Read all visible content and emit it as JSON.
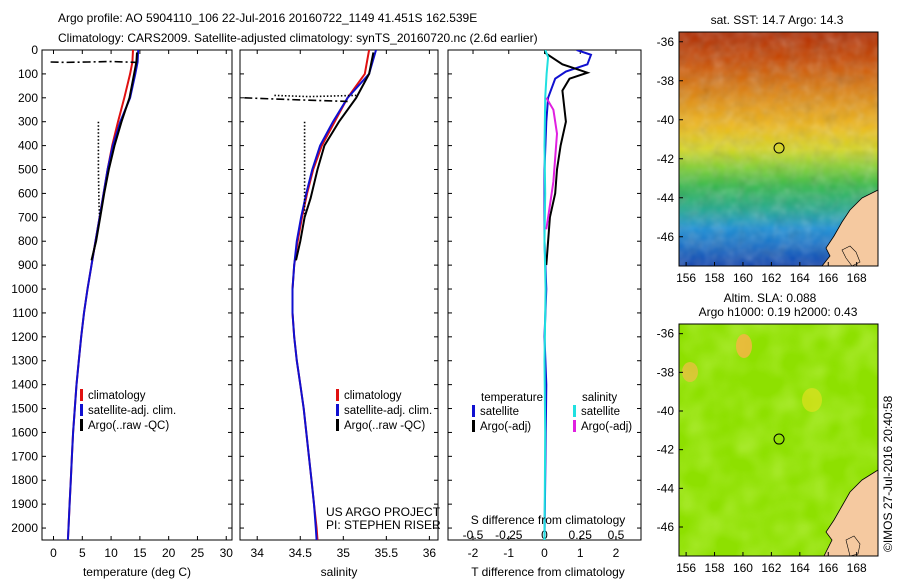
{
  "header": {
    "line1": "Argo profile: AO 5904110_106 22-Jul-2016 20160722_1149 41.451S 162.539E",
    "line2": "Climatology: CARS2009. Satellite-adjusted climatology: synTS_20160720.nc (2.6d earlier)"
  },
  "colors": {
    "climatology": "#e01010",
    "satellite": "#1010d0",
    "argo": "#000000",
    "sal_satellite": "#20e0e0",
    "sal_argo": "#e020e0"
  },
  "chart_data": [
    {
      "type": "line",
      "id": "temperature",
      "xlabel": "temperature (deg C)",
      "ylabel": "",
      "xlim": [
        -2,
        31
      ],
      "ylim": [
        2050,
        0
      ],
      "xticks": [
        0,
        5,
        10,
        15,
        20,
        25,
        30
      ],
      "yticks": [
        0,
        100,
        200,
        300,
        400,
        500,
        600,
        700,
        800,
        900,
        1000,
        1100,
        1200,
        1300,
        1400,
        1500,
        1600,
        1700,
        1800,
        1900,
        2000
      ],
      "legend": {
        "placement": "lower-right",
        "entries": [
          "climatology",
          "satellite-adj. clim.",
          "Argo(..raw -QC)"
        ]
      },
      "series": [
        {
          "name": "climatology",
          "color": "#e01010",
          "points": [
            [
              13.8,
              0
            ],
            [
              13.7,
              50
            ],
            [
              13.3,
              100
            ],
            [
              12.3,
              200
            ],
            [
              11.2,
              300
            ],
            [
              10.2,
              400
            ],
            [
              9.4,
              500
            ],
            [
              8.7,
              600
            ],
            [
              8.0,
              700
            ],
            [
              7.3,
              800
            ],
            [
              6.6,
              900
            ],
            [
              5.9,
              1000
            ],
            [
              5.3,
              1100
            ],
            [
              4.8,
              1200
            ],
            [
              4.4,
              1300
            ],
            [
              4.0,
              1400
            ],
            [
              3.7,
              1500
            ],
            [
              3.4,
              1600
            ],
            [
              3.2,
              1700
            ],
            [
              3.0,
              1800
            ],
            [
              2.8,
              1900
            ],
            [
              2.6,
              2000
            ],
            [
              2.5,
              2050
            ]
          ]
        },
        {
          "name": "satellite-adj. clim.",
          "color": "#1010d0",
          "points": [
            [
              14.7,
              0
            ],
            [
              14.6,
              50
            ],
            [
              14.2,
              100
            ],
            [
              13.3,
              200
            ],
            [
              11.6,
              300
            ],
            [
              10.3,
              400
            ],
            [
              9.4,
              500
            ],
            [
              8.7,
              600
            ],
            [
              8.0,
              700
            ],
            [
              7.3,
              800
            ],
            [
              6.6,
              900
            ],
            [
              5.9,
              1000
            ],
            [
              5.3,
              1100
            ],
            [
              4.8,
              1200
            ],
            [
              4.4,
              1300
            ],
            [
              4.0,
              1400
            ],
            [
              3.7,
              1500
            ],
            [
              3.4,
              1600
            ],
            [
              3.2,
              1700
            ],
            [
              3.0,
              1800
            ],
            [
              2.8,
              1900
            ],
            [
              2.6,
              2000
            ],
            [
              2.5,
              2050
            ]
          ]
        },
        {
          "name": "Argo(..raw -QC)",
          "color": "#000000",
          "points": [
            [
              14.5,
              10
            ],
            [
              14.4,
              50
            ],
            [
              14.0,
              100
            ],
            [
              13.2,
              200
            ],
            [
              11.8,
              300
            ],
            [
              10.6,
              400
            ],
            [
              9.6,
              500
            ],
            [
              8.8,
              600
            ],
            [
              8.1,
              700
            ],
            [
              7.4,
              800
            ],
            [
              6.6,
              880
            ]
          ]
        },
        {
          "name": "Argo raw spike",
          "color": "#000000",
          "dash": "8 3 2 3",
          "points": [
            [
              -0.5,
              50
            ],
            [
              2,
              52
            ],
            [
              6,
              50
            ],
            [
              10,
              48
            ],
            [
              14.5,
              52
            ]
          ]
        },
        {
          "name": "Argo raw dotted",
          "color": "#000000",
          "dash": "1.5 2",
          "points": [
            [
              7.8,
              300
            ],
            [
              7.8,
              500
            ],
            [
              7.9,
              650
            ],
            [
              8.0,
              700
            ]
          ]
        }
      ]
    },
    {
      "type": "line",
      "id": "salinity",
      "xlabel": "salinity",
      "ylabel": "",
      "xlim": [
        33.8,
        36.1
      ],
      "ylim": [
        2050,
        0
      ],
      "xticks": [
        34,
        34.5,
        35,
        35.5,
        36
      ],
      "xticklabels": [
        "34",
        "34.5",
        "35",
        "35.5",
        "36"
      ],
      "legend": {
        "placement": "lower-right",
        "entries": [
          "climatology",
          "satellite-adj. clim.",
          "Argo(..raw -QC)"
        ]
      },
      "annotations": [
        "US ARGO PROJECT",
        "PI: STEPHEN RISER"
      ],
      "series": [
        {
          "name": "climatology",
          "color": "#e01010",
          "points": [
            [
              35.3,
              0
            ],
            [
              35.25,
              100
            ],
            [
              35.05,
              200
            ],
            [
              34.9,
              300
            ],
            [
              34.75,
              400
            ],
            [
              34.65,
              500
            ],
            [
              34.58,
              600
            ],
            [
              34.52,
              700
            ],
            [
              34.47,
              800
            ],
            [
              34.43,
              900
            ],
            [
              34.41,
              1000
            ],
            [
              34.41,
              1100
            ],
            [
              34.43,
              1200
            ],
            [
              34.46,
              1300
            ],
            [
              34.5,
              1400
            ],
            [
              34.54,
              1500
            ],
            [
              34.57,
              1600
            ],
            [
              34.6,
              1700
            ],
            [
              34.63,
              1800
            ],
            [
              34.66,
              1900
            ],
            [
              34.69,
              2000
            ],
            [
              34.7,
              2050
            ]
          ]
        },
        {
          "name": "satellite-adj. clim.",
          "color": "#1010d0",
          "points": [
            [
              35.38,
              0
            ],
            [
              35.3,
              100
            ],
            [
              35.05,
              200
            ],
            [
              34.88,
              300
            ],
            [
              34.73,
              400
            ],
            [
              34.64,
              500
            ],
            [
              34.57,
              600
            ],
            [
              34.51,
              700
            ],
            [
              34.46,
              800
            ],
            [
              34.43,
              900
            ],
            [
              34.41,
              1000
            ],
            [
              34.41,
              1100
            ],
            [
              34.43,
              1200
            ],
            [
              34.46,
              1300
            ],
            [
              34.5,
              1400
            ],
            [
              34.54,
              1500
            ],
            [
              34.57,
              1600
            ],
            [
              34.6,
              1700
            ],
            [
              34.63,
              1800
            ],
            [
              34.66,
              1900
            ],
            [
              34.68,
              2000
            ],
            [
              34.69,
              2050
            ]
          ]
        },
        {
          "name": "Argo(..raw -QC)",
          "color": "#000000",
          "points": [
            [
              35.35,
              10
            ],
            [
              35.3,
              100
            ],
            [
              35.15,
              200
            ],
            [
              34.95,
              300
            ],
            [
              34.78,
              400
            ],
            [
              34.7,
              500
            ],
            [
              34.62,
              620
            ],
            [
              34.55,
              700
            ],
            [
              34.5,
              800
            ],
            [
              34.45,
              880
            ]
          ]
        },
        {
          "name": "Argo raw spike",
          "color": "#000000",
          "dash": "8 3 2 3",
          "points": [
            [
              33.85,
              200
            ],
            [
              34.2,
              205
            ],
            [
              34.6,
              210
            ],
            [
              35.05,
              215
            ]
          ]
        },
        {
          "name": "Argo raw dotted",
          "color": "#000000",
          "dash": "1.5 2",
          "points": [
            [
              34.55,
              300
            ],
            [
              34.55,
              450
            ],
            [
              34.55,
              600
            ],
            [
              34.55,
              700
            ]
          ]
        },
        {
          "name": "Argo raw dotted 2",
          "color": "#000000",
          "dash": "1.5 2",
          "points": [
            [
              34.2,
              190
            ],
            [
              34.6,
              195
            ],
            [
              35.15,
              190
            ]
          ]
        }
      ]
    },
    {
      "type": "line",
      "id": "differences",
      "xlabel": "T difference from climatology",
      "x2label": "S difference from climatology",
      "ylabel": "",
      "xlim": [
        -2.7,
        2.7
      ],
      "ylim": [
        2050,
        0
      ],
      "xticks": [
        -2,
        -1,
        0,
        1,
        2
      ],
      "x2ticks": [
        -0.5,
        -0.25,
        0,
        0.25,
        0.5
      ],
      "x2ticklabels": [
        "-0.5",
        "-0.25",
        "0",
        "0.25",
        "0.5"
      ],
      "legend": {
        "placement": "lower-center",
        "temperature_title": "temperature",
        "salinity_title": "salinity",
        "entries": [
          "satellite",
          "Argo(-adj)",
          "satellite",
          "Argo(-adj)"
        ]
      },
      "series": [
        {
          "name": "T satellite",
          "color": "#1010d0",
          "points": [
            [
              0.9,
              0
            ],
            [
              1.3,
              20
            ],
            [
              1.2,
              60
            ],
            [
              0.6,
              90
            ],
            [
              0.3,
              120
            ],
            [
              0.1,
              200
            ],
            [
              0.05,
              300
            ],
            [
              0.0,
              500
            ],
            [
              0,
              800
            ],
            [
              0.05,
              1000
            ],
            [
              0,
              1200
            ],
            [
              0.05,
              1400
            ],
            [
              0,
              2050
            ]
          ]
        },
        {
          "name": "T Argo(-adj)",
          "color": "#000000",
          "points": [
            [
              0.0,
              10
            ],
            [
              0.2,
              30
            ],
            [
              0.5,
              60
            ],
            [
              0.9,
              80
            ],
            [
              1.2,
              95
            ],
            [
              0.7,
              120
            ],
            [
              0.5,
              170
            ],
            [
              0.6,
              300
            ],
            [
              0.45,
              400
            ],
            [
              0.35,
              500
            ],
            [
              0.3,
              600
            ],
            [
              0.15,
              700
            ],
            [
              0.05,
              900
            ]
          ]
        },
        {
          "name": "S satellite",
          "color": "#20e0e0",
          "points": [
            [
              0.02,
              0
            ],
            [
              0.1,
              30
            ],
            [
              0.06,
              100
            ],
            [
              0.02,
              200
            ],
            [
              0.0,
              400
            ],
            [
              0.02,
              600
            ],
            [
              0,
              800
            ],
            [
              0.03,
              1000
            ],
            [
              0,
              1300
            ],
            [
              0.02,
              1600
            ],
            [
              0,
              2050
            ]
          ]
        },
        {
          "name": "S Argo(-adj)",
          "color": "#e020e0",
          "points": [
            [
              0.05,
              200
            ],
            [
              0.25,
              250
            ],
            [
              0.3,
              300
            ],
            [
              0.35,
              350
            ],
            [
              0.3,
              450
            ],
            [
              0.25,
              550
            ],
            [
              0.15,
              650
            ],
            [
              0.05,
              750
            ]
          ]
        }
      ]
    },
    {
      "type": "heatmap",
      "id": "sst_map",
      "title": "sat. SST: 14.7 Argo: 14.3",
      "xticks": [
        156,
        158,
        160,
        162,
        164,
        166,
        168
      ],
      "yticks": [
        -36,
        -38,
        -40,
        -42,
        -44,
        -46
      ],
      "xlim": [
        155.5,
        169.5
      ],
      "ylim": [
        -47.5,
        -35.5
      ],
      "marker": [
        162.539,
        -41.451
      ]
    },
    {
      "type": "heatmap",
      "id": "sla_map",
      "title": "Altim. SLA: 0.088",
      "subtitle": "Argo h1000: 0.19 h2000: 0.43",
      "xticks": [
        156,
        158,
        160,
        162,
        164,
        166,
        168
      ],
      "yticks": [
        -36,
        -38,
        -40,
        -42,
        -44,
        -46
      ],
      "xlim": [
        155.5,
        169.5
      ],
      "ylim": [
        -47.5,
        -35.5
      ],
      "marker": [
        162.539,
        -41.451
      ]
    }
  ],
  "footer": {
    "credit": "©IMOS 27-Jul-2016 20:40:58"
  }
}
